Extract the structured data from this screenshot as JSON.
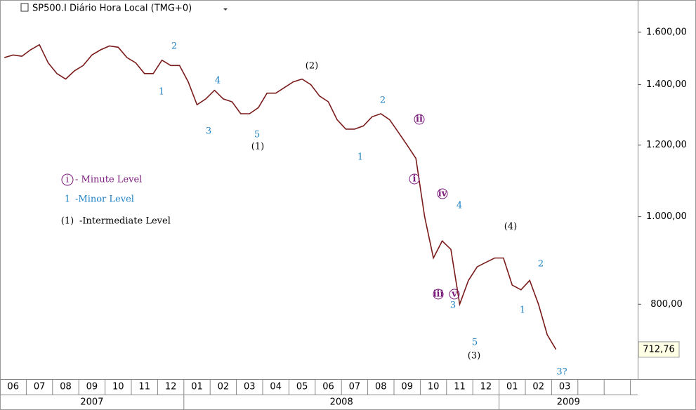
{
  "chart_data": {
    "type": "line",
    "title": "SP500.I Diário Hora Local (TMG+0)",
    "categories": [
      null,
      "06",
      null,
      null,
      "07",
      null,
      null,
      "08",
      null,
      null,
      "09",
      null,
      null,
      "10",
      null,
      null,
      "11",
      null,
      null,
      "12",
      null,
      null,
      "01",
      null,
      null,
      "02",
      null,
      null,
      "03",
      null,
      null,
      "04",
      null,
      null,
      "05",
      null,
      null,
      "06",
      null,
      null,
      "07",
      null,
      null,
      "08",
      null,
      null,
      "09",
      null,
      null,
      "10",
      null,
      null,
      "11",
      null,
      null,
      "12",
      null,
      null,
      "01",
      null,
      null,
      "02",
      null,
      null,
      "03",
      null
    ],
    "series": [
      {
        "color": "#7a1b1b",
        "values": [
          1500,
          1510,
          1505,
          1530,
          1550,
          1480,
          1440,
          1420,
          1450,
          1470,
          1510,
          1530,
          1545,
          1540,
          1500,
          1480,
          1440,
          1440,
          1490,
          1470,
          1470,
          1410,
          1330,
          1350,
          1380,
          1350,
          1340,
          1300,
          1300,
          1320,
          1370,
          1370,
          1390,
          1410,
          1420,
          1400,
          1360,
          1340,
          1280,
          1250,
          1250,
          1260,
          1290,
          1300,
          1280,
          1240,
          1200,
          1160,
          1000,
          900,
          940,
          920,
          800,
          850,
          880,
          890,
          900,
          900,
          840,
          830,
          850,
          800,
          740,
          713,
          null,
          null
        ]
      }
    ],
    "years": [
      "2007",
      "2008",
      "2009"
    ],
    "log_scale": true,
    "ylim": [
      661,
      1737
    ],
    "yticks": [
      {
        "value": 800,
        "label": "800,00"
      },
      {
        "value": 1000,
        "label": "1.000,00"
      },
      {
        "value": 1200,
        "label": "1.200,00"
      },
      {
        "value": 1400,
        "label": "1.400,00"
      },
      {
        "value": 1600,
        "label": "1.600,00"
      }
    ],
    "last_price": {
      "value": 712.76,
      "label": "712,76"
    },
    "annotations": [
      {
        "text": "2",
        "color": "#1f82c4"
      },
      {
        "text": "1",
        "color": "#1f82c4"
      },
      {
        "text": "4",
        "color": "#1f82c4"
      },
      {
        "text": "3",
        "color": "#1f82c4"
      },
      {
        "text": "5",
        "color": "#1f82c4"
      },
      {
        "text": "(1)",
        "color": "#000000"
      },
      {
        "text": "(2)",
        "color": "#000000"
      },
      {
        "text": "2",
        "color": "#1f82c4"
      },
      {
        "text": "1",
        "color": "#1f82c4"
      },
      {
        "text": "ii",
        "color": "#7a1a7a"
      },
      {
        "text": "i",
        "color": "#7a1a7a"
      },
      {
        "text": "iv",
        "color": "#7a1a7a"
      },
      {
        "text": "4",
        "color": "#1f82c4"
      },
      {
        "text": "iii",
        "color": "#7a1a7a"
      },
      {
        "text": "v",
        "color": "#7a1a7a"
      },
      {
        "text": "3",
        "color": "#1f82c4"
      },
      {
        "text": "5",
        "color": "#1f82c4"
      },
      {
        "text": "(3)",
        "color": "#000000"
      },
      {
        "text": "(4)",
        "color": "#000000"
      },
      {
        "text": "2",
        "color": "#1f82c4"
      },
      {
        "text": "1",
        "color": "#1f82c4"
      },
      {
        "text": "3?",
        "color": "#1f82c4"
      }
    ],
    "legend": [
      {
        "symbol": "i",
        "label": "- Minute Level",
        "color": "#7a1a7a"
      },
      {
        "symbol": "1",
        "label": "-Minor Level",
        "color": "#1f82c4"
      },
      {
        "symbol": "(1)",
        "label": "-Intermediate Level",
        "color": "#000000"
      }
    ]
  }
}
